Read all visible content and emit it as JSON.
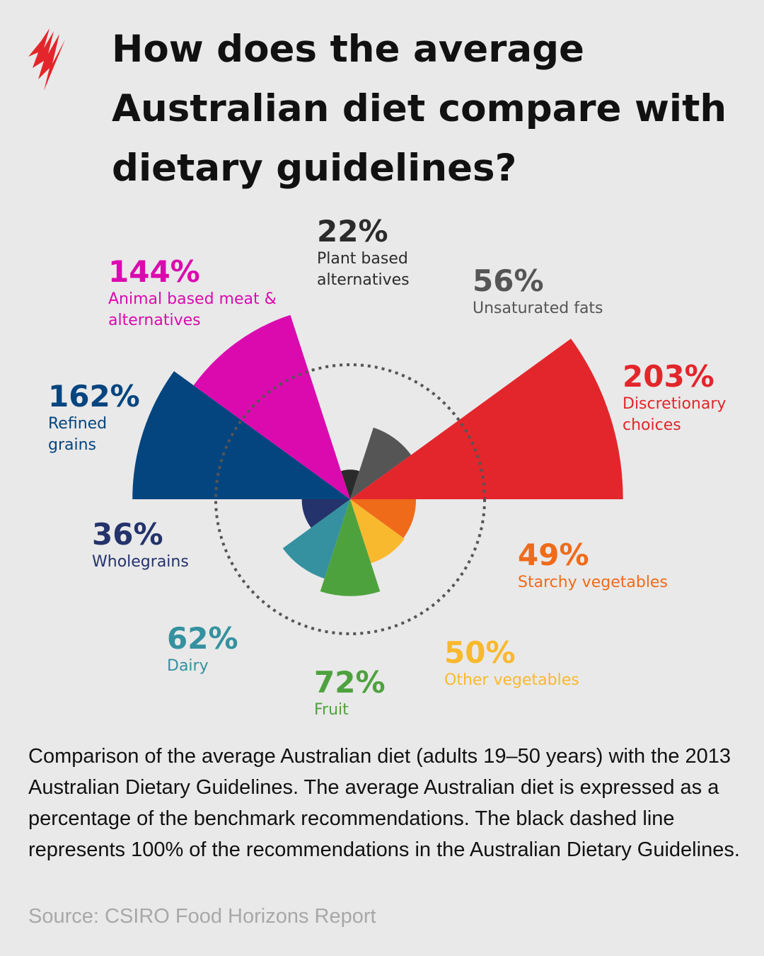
{
  "chart_data": {
    "type": "polar-area",
    "title": "How does the average Australian diet compare with dietary guidelines?",
    "categories": [
      "Plant based alternatives",
      "Unsaturated fats",
      "Discretionary choices",
      "Starchy vegetables",
      "Other vegetables",
      "Fruit",
      "Dairy",
      "Wholegrains",
      "Refined grains",
      "Animal based meat & alternatives"
    ],
    "values": [
      22,
      56,
      203,
      49,
      50,
      72,
      62,
      36,
      162,
      144
    ],
    "value_labels": [
      "22%",
      "56%",
      "203%",
      "49%",
      "50%",
      "72%",
      "62%",
      "36%",
      "162%",
      "144%"
    ],
    "colors": [
      "#2b2b2b",
      "#555555",
      "#e3262b",
      "#ef6b1a",
      "#f9b92e",
      "#4ea23e",
      "#35919f",
      "#24336b",
      "#04457f",
      "#db0aaf"
    ],
    "reference_value": 100,
    "caption": "Comparison of the average Australian diet (adults 19–50 years) with the 2013 Australian Dietary Guidelines. The average Australian diet is expressed as a percentage of the benchmark recommendations. The black dashed line represents 100% of the recommendations in the Australian Dietary Guidelines.",
    "source": "Source: CSIRO Food Horizons Report"
  }
}
